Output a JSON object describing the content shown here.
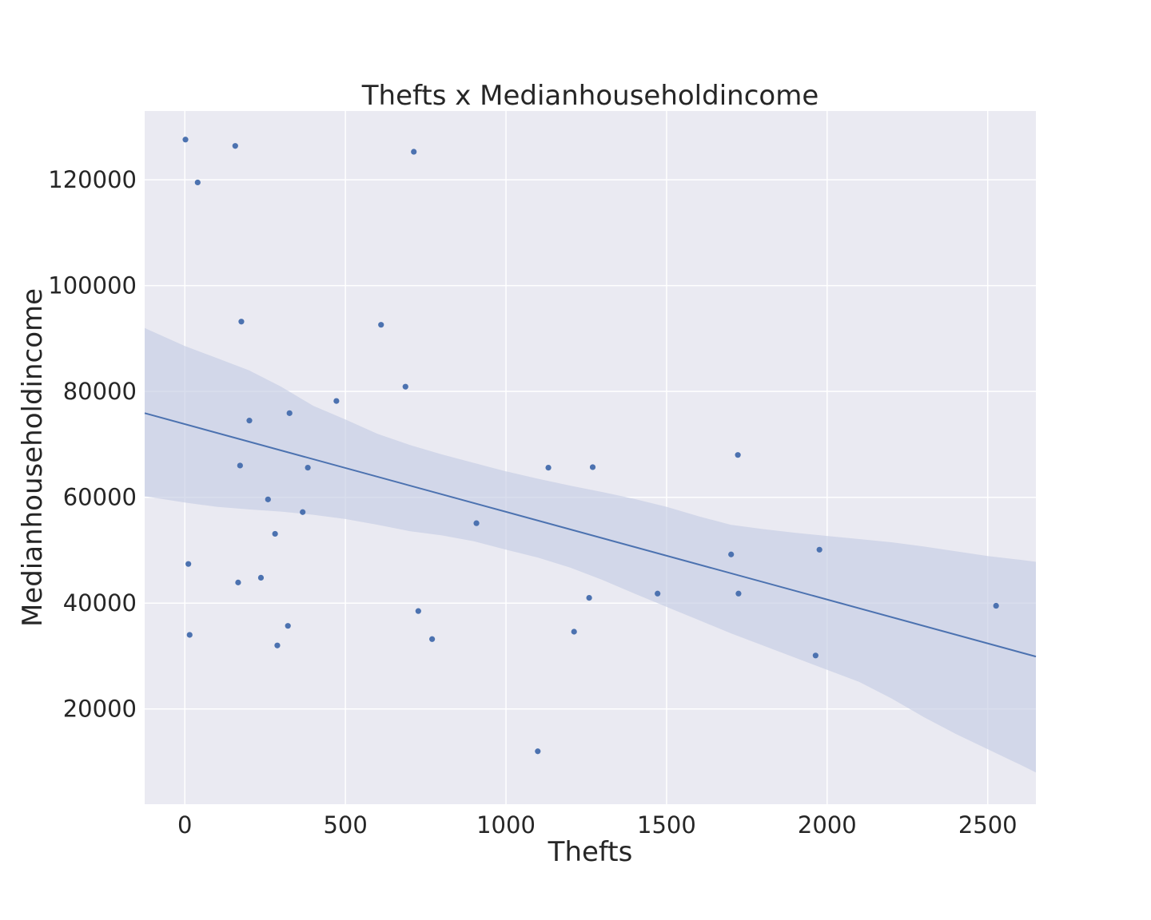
{
  "chart_data": {
    "type": "scatter",
    "title": "Thefts x Medianhouseholdincome",
    "xlabel": "Thefts",
    "ylabel": "Medianhouseholdincome",
    "xlim": [
      -125,
      2650
    ],
    "ylim": [
      2000,
      133000
    ],
    "xticks": [
      0,
      500,
      1000,
      1500,
      2000,
      2500
    ],
    "yticks": [
      20000,
      40000,
      60000,
      80000,
      100000,
      120000
    ],
    "grid": true,
    "colors": {
      "background": "#eaeaf2",
      "grid": "#ffffff",
      "points": "#4c72b0",
      "line": "#4c72b0",
      "band": "#c5cde4"
    },
    "points": [
      {
        "x": 2,
        "y": 127600
      },
      {
        "x": 157,
        "y": 126400
      },
      {
        "x": 713,
        "y": 125300
      },
      {
        "x": 40,
        "y": 119500
      },
      {
        "x": 176,
        "y": 93200
      },
      {
        "x": 611,
        "y": 92600
      },
      {
        "x": 687,
        "y": 80900
      },
      {
        "x": 472,
        "y": 78200
      },
      {
        "x": 326,
        "y": 75900
      },
      {
        "x": 201,
        "y": 74500
      },
      {
        "x": 1722,
        "y": 68000
      },
      {
        "x": 172,
        "y": 66000
      },
      {
        "x": 1270,
        "y": 65700
      },
      {
        "x": 1132,
        "y": 65600
      },
      {
        "x": 383,
        "y": 65600
      },
      {
        "x": 259,
        "y": 59600
      },
      {
        "x": 367,
        "y": 57200
      },
      {
        "x": 908,
        "y": 55100
      },
      {
        "x": 281,
        "y": 53100
      },
      {
        "x": 1976,
        "y": 50100
      },
      {
        "x": 1701,
        "y": 49200
      },
      {
        "x": 11,
        "y": 47400
      },
      {
        "x": 237,
        "y": 44800
      },
      {
        "x": 166,
        "y": 43900
      },
      {
        "x": 1472,
        "y": 41800
      },
      {
        "x": 1724,
        "y": 41800
      },
      {
        "x": 1259,
        "y": 41000
      },
      {
        "x": 2526,
        "y": 39500
      },
      {
        "x": 727,
        "y": 38500
      },
      {
        "x": 321,
        "y": 35700
      },
      {
        "x": 1212,
        "y": 34600
      },
      {
        "x": 15,
        "y": 34000
      },
      {
        "x": 770,
        "y": 33200
      },
      {
        "x": 288,
        "y": 32000
      },
      {
        "x": 1964,
        "y": 30100
      },
      {
        "x": 1099,
        "y": 12000
      }
    ],
    "regression": {
      "x": [
        -125,
        2650
      ],
      "y": [
        75900,
        29900
      ]
    },
    "confidence_band": {
      "x": [
        -125,
        0,
        100,
        200,
        300,
        400,
        500,
        600,
        700,
        800,
        900,
        1000,
        1100,
        1200,
        1300,
        1400,
        1500,
        1600,
        1700,
        1800,
        1900,
        2000,
        2100,
        2200,
        2300,
        2400,
        2500,
        2600,
        2650
      ],
      "lower": [
        60200,
        59000,
        58200,
        57700,
        57300,
        56700,
        55900,
        54800,
        53600,
        52800,
        51700,
        50100,
        48600,
        46700,
        44400,
        41800,
        39300,
        36800,
        34300,
        32000,
        29700,
        27400,
        25100,
        22000,
        18500,
        15300,
        12400,
        9500,
        8000
      ],
      "upper": [
        92000,
        88600,
        86300,
        84000,
        80900,
        77300,
        74700,
        72000,
        69900,
        68100,
        66500,
        64900,
        63500,
        62200,
        61000,
        59700,
        58200,
        56400,
        54800,
        54000,
        53300,
        52700,
        52100,
        51500,
        50700,
        49800,
        48900,
        48200,
        47800
      ]
    }
  }
}
